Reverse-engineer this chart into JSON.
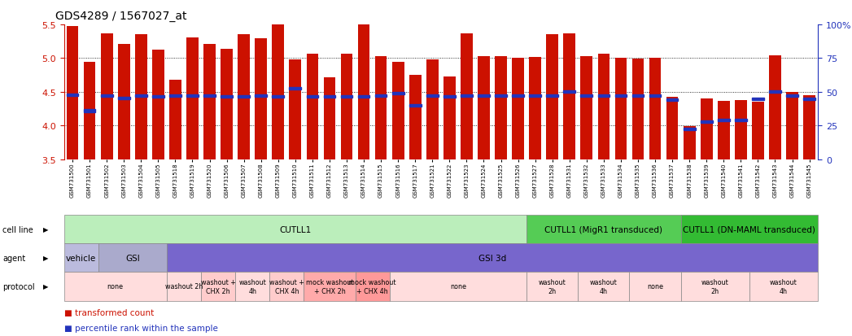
{
  "title": "GDS4289 / 1567027_at",
  "samples": [
    "GSM731500",
    "GSM731501",
    "GSM731502",
    "GSM731503",
    "GSM731504",
    "GSM731505",
    "GSM731518",
    "GSM731519",
    "GSM731520",
    "GSM731506",
    "GSM731507",
    "GSM731508",
    "GSM731509",
    "GSM731510",
    "GSM731511",
    "GSM731512",
    "GSM731513",
    "GSM731514",
    "GSM731515",
    "GSM731516",
    "GSM731517",
    "GSM731521",
    "GSM731522",
    "GSM731523",
    "GSM731524",
    "GSM731525",
    "GSM731526",
    "GSM731527",
    "GSM731528",
    "GSM731531",
    "GSM731532",
    "GSM731533",
    "GSM731534",
    "GSM731535",
    "GSM731536",
    "GSM731537",
    "GSM731538",
    "GSM731539",
    "GSM731540",
    "GSM731541",
    "GSM731542",
    "GSM731543",
    "GSM731544",
    "GSM731545"
  ],
  "bar_values": [
    5.48,
    4.95,
    5.37,
    5.21,
    5.35,
    5.13,
    4.68,
    5.31,
    5.21,
    5.14,
    5.36,
    5.29,
    5.53,
    4.98,
    5.07,
    4.72,
    5.07,
    5.53,
    5.03,
    4.94,
    4.75,
    4.98,
    4.73,
    5.37,
    5.03,
    5.03,
    5.01,
    5.02,
    5.36,
    5.37,
    5.03,
    5.06,
    5.0,
    4.99,
    5.01,
    4.42,
    3.99,
    4.4,
    4.36,
    4.38,
    4.35,
    5.04,
    4.5,
    4.45
  ],
  "blue_values": [
    4.46,
    4.22,
    4.44,
    4.41,
    4.44,
    4.43,
    4.44,
    4.44,
    4.44,
    4.43,
    4.43,
    4.44,
    4.43,
    4.55,
    4.43,
    4.43,
    4.43,
    4.43,
    4.44,
    4.48,
    4.3,
    4.44,
    4.43,
    4.44,
    4.44,
    4.44,
    4.44,
    4.44,
    4.44,
    4.5,
    4.44,
    4.44,
    4.44,
    4.44,
    4.44,
    4.38,
    3.95,
    4.06,
    4.08,
    4.08,
    4.4,
    4.5,
    4.44,
    4.4
  ],
  "ylim": [
    3.5,
    5.5
  ],
  "yticks_left": [
    3.5,
    4.0,
    4.5,
    5.0,
    5.5
  ],
  "yticks_right": [
    0,
    25,
    50,
    75,
    100
  ],
  "bar_color": "#cc1100",
  "blue_color": "#2233bb",
  "cell_line_groups": [
    {
      "label": "CUTLL1",
      "start": 0,
      "end": 27,
      "color": "#bbeebb"
    },
    {
      "label": "CUTLL1 (MigR1 transduced)",
      "start": 27,
      "end": 36,
      "color": "#55cc55"
    },
    {
      "label": "CUTLL1 (DN-MAML transduced)",
      "start": 36,
      "end": 44,
      "color": "#33bb33"
    }
  ],
  "agent_groups": [
    {
      "label": "vehicle",
      "start": 0,
      "end": 2,
      "color": "#bbbbdd"
    },
    {
      "label": "GSI",
      "start": 2,
      "end": 6,
      "color": "#aaaacc"
    },
    {
      "label": "GSI 3d",
      "start": 6,
      "end": 44,
      "color": "#7766cc"
    }
  ],
  "protocol_groups": [
    {
      "label": "none",
      "start": 0,
      "end": 6,
      "color": "#ffdddd"
    },
    {
      "label": "washout 2h",
      "start": 6,
      "end": 8,
      "color": "#ffdddd"
    },
    {
      "label": "washout +\nCHX 2h",
      "start": 8,
      "end": 10,
      "color": "#ffcccc"
    },
    {
      "label": "washout\n4h",
      "start": 10,
      "end": 12,
      "color": "#ffdddd"
    },
    {
      "label": "washout +\nCHX 4h",
      "start": 12,
      "end": 14,
      "color": "#ffcccc"
    },
    {
      "label": "mock washout\n+ CHX 2h",
      "start": 14,
      "end": 17,
      "color": "#ffaaaa"
    },
    {
      "label": "mock washout\n+ CHX 4h",
      "start": 17,
      "end": 19,
      "color": "#ff9999"
    },
    {
      "label": "none",
      "start": 19,
      "end": 27,
      "color": "#ffdddd"
    },
    {
      "label": "washout\n2h",
      "start": 27,
      "end": 30,
      "color": "#ffdddd"
    },
    {
      "label": "washout\n4h",
      "start": 30,
      "end": 33,
      "color": "#ffdddd"
    },
    {
      "label": "none",
      "start": 33,
      "end": 36,
      "color": "#ffdddd"
    },
    {
      "label": "washout\n2h",
      "start": 36,
      "end": 40,
      "color": "#ffdddd"
    },
    {
      "label": "washout\n4h",
      "start": 40,
      "end": 44,
      "color": "#ffdddd"
    }
  ],
  "background_color": "#ffffff"
}
